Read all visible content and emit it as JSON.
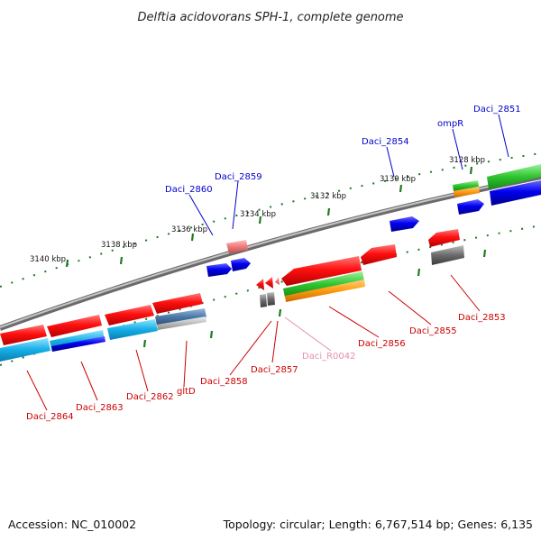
{
  "title": "Delftia acidovorans SPH-1, complete genome",
  "footer": {
    "accession": "Accession: NC_010002",
    "summary": "Topology: circular; Length: 6,767,514 bp; Genes: 6,135"
  },
  "colors": {
    "backbone": "#8a8a8a",
    "tick_dots": "#1f7a1f",
    "label_top": "#0000cc",
    "label_bottom": "#cc0000",
    "label_rna": "#e58fb0"
  },
  "ticks": [
    {
      "label": "3140 kbp"
    },
    {
      "label": "3138 kbp"
    },
    {
      "label": "3136 kbp"
    },
    {
      "label": "3134 kbp"
    },
    {
      "label": "3132 kbp"
    },
    {
      "label": "3130 kbp"
    },
    {
      "label": "3128 kbp"
    }
  ],
  "top_labels": [
    {
      "text": "Daci_2860"
    },
    {
      "text": "Daci_2859"
    },
    {
      "text": "Daci_2854"
    },
    {
      "text": "ompR"
    },
    {
      "text": "Daci_2851"
    }
  ],
  "bottom_labels": [
    {
      "text": "Daci_2864"
    },
    {
      "text": "Daci_2863"
    },
    {
      "text": "Daci_2862"
    },
    {
      "text": "gltD"
    },
    {
      "text": "Daci_2858"
    },
    {
      "text": "Daci_2857"
    },
    {
      "text": "Daci_R0042"
    },
    {
      "text": "Daci_2856"
    },
    {
      "text": "Daci_2855"
    },
    {
      "text": "Daci_2853"
    }
  ]
}
